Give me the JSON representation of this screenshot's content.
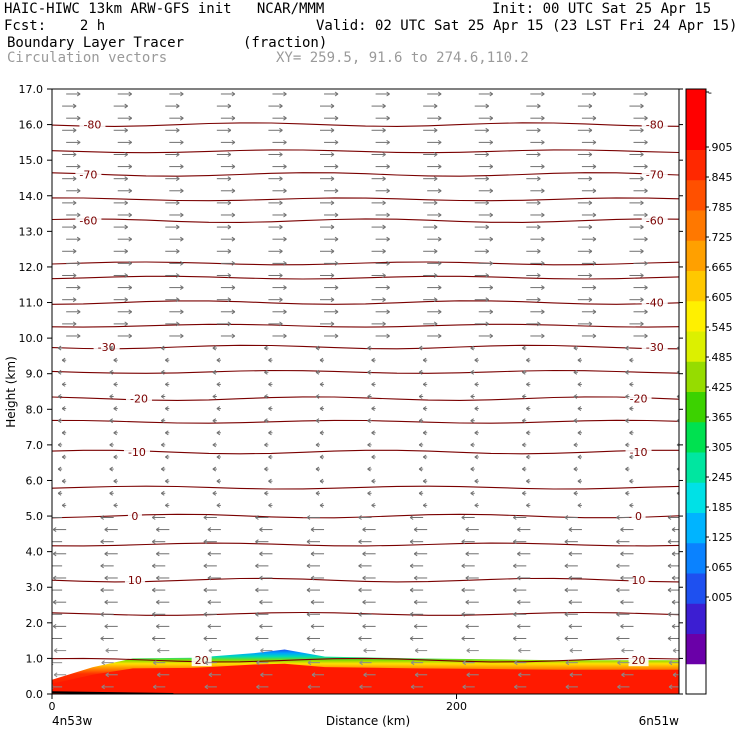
{
  "header": {
    "title_left": "HAIC-HIWC 13km ARW-GFS init   NCAR/MMM",
    "init": "Init: 00 UTC Sat 25 Apr 15",
    "fcst": "Fcst:    2 h",
    "valid": "Valid: 02 UTC Sat 25 Apr 15 (23 LST Fri 24 Apr 15)",
    "field": "Boundary Layer Tracer       (fraction)",
    "vectors": "Circulation vectors",
    "xy": "XY= 259.5, 91.6 to 274.6,110.2"
  },
  "chart_data": {
    "type": "heatmap",
    "xlabel": "Distance (km)",
    "ylabel": "Height (km)",
    "xlim": [
      0,
      310
    ],
    "ylim": [
      0,
      17
    ],
    "x_ticks": [
      {
        "v": 0,
        "label": "0"
      },
      {
        "v": 200,
        "label": "200"
      }
    ],
    "x_end_labels": {
      "left": "4n53w",
      "right": "6n51w"
    },
    "y_ticks": [
      "0.0",
      "1.0",
      "2.0",
      "3.0",
      "4.0",
      "5.0",
      "6.0",
      "7.0",
      "8.0",
      "9.0",
      "10.0",
      "11.0",
      "12.0",
      "13.0",
      "14.0",
      "15.0",
      "16.0",
      "17.0"
    ],
    "colorbar_labels": [
      "-",
      ".905",
      ".845",
      ".785",
      ".725",
      ".665",
      ".605",
      ".545",
      ".485",
      ".425",
      ".365",
      ".305",
      ".245",
      ".185",
      ".125",
      ".065",
      ".005"
    ],
    "colorbar_colors": [
      "#ffffff",
      "#6a00a8",
      "#3c1ed2",
      "#1e50f0",
      "#0a82ff",
      "#00b4ff",
      "#00e1e6",
      "#00e6a0",
      "#00e150",
      "#3cd200",
      "#96dc00",
      "#dcf000",
      "#fff000",
      "#ffc800",
      "#ffa000",
      "#ff7800",
      "#ff5000",
      "#ff2800",
      "#ff0000",
      "#ff0000"
    ],
    "temperature_contours": [
      {
        "label": "-80",
        "y": 16.0,
        "label_x": [
          20,
          298
        ]
      },
      {
        "label": "-70",
        "y": 14.6,
        "label_x": [
          18,
          298
        ]
      },
      {
        "label": "-60",
        "y": 13.3,
        "label_x": [
          18,
          298
        ]
      },
      {
        "label": "-40",
        "y": 11.0,
        "label_x": [
          298
        ]
      },
      {
        "label": "-30",
        "y": 9.75,
        "label_x": [
          27,
          298
        ]
      },
      {
        "label": "-20",
        "y": 8.3,
        "label_x": [
          43,
          290
        ]
      },
      {
        "label": "-10",
        "y": 6.8,
        "label_x": [
          42,
          290
        ]
      },
      {
        "label": "0",
        "y": 5.0,
        "label_x": [
          41,
          290
        ]
      },
      {
        "label": "10",
        "y": 3.2,
        "label_x": [
          41,
          290
        ]
      },
      {
        "label": "20",
        "y": 0.95,
        "label_x": [
          74,
          290
        ]
      }
    ],
    "unlabeled_contour_heights": [
      15.25,
      13.9,
      12.1,
      11.7,
      10.35,
      9.05,
      7.65,
      5.8,
      4.2,
      2.25
    ],
    "tracer_top_km": [
      {
        "x": 0,
        "top": 0.4
      },
      {
        "x": 20,
        "top": 0.75
      },
      {
        "x": 40,
        "top": 1.0
      },
      {
        "x": 70,
        "top": 1.02
      },
      {
        "x": 100,
        "top": 1.15
      },
      {
        "x": 115,
        "top": 1.25
      },
      {
        "x": 135,
        "top": 1.05
      },
      {
        "x": 180,
        "top": 1.0
      },
      {
        "x": 210,
        "top": 0.98
      },
      {
        "x": 250,
        "top": 0.95
      },
      {
        "x": 310,
        "top": 0.95
      }
    ],
    "wind_regimes": [
      {
        "range_km": [
          0,
          1.5
        ],
        "direction": "easterly"
      },
      {
        "range_km": [
          1.5,
          5.3
        ],
        "direction": "easterly"
      },
      {
        "range_km": [
          5.3,
          10
        ],
        "direction": "weak"
      },
      {
        "range_km": [
          10,
          17
        ],
        "direction": "westerly"
      }
    ]
  }
}
